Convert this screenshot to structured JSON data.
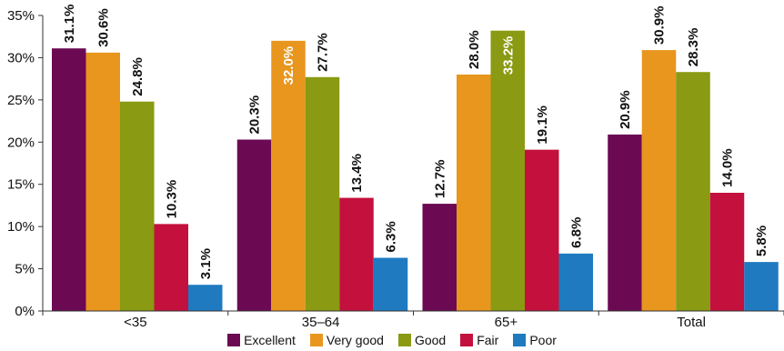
{
  "chart_data": {
    "type": "bar",
    "categories": [
      "<35",
      "35–64",
      "65+",
      "Total"
    ],
    "series": [
      {
        "name": "Excellent",
        "color": "#6b0a52",
        "values": [
          31.1,
          20.3,
          12.7,
          20.9
        ],
        "labels": [
          "31.1%",
          "20.3%",
          "12.7%",
          "20.9%"
        ]
      },
      {
        "name": "Very good",
        "color": "#e8961e",
        "values": [
          30.6,
          32.0,
          28.0,
          30.9
        ],
        "labels": [
          "30.6%",
          "32.0%",
          "28.0%",
          "30.9%"
        ]
      },
      {
        "name": "Good",
        "color": "#8a9a12",
        "values": [
          24.8,
          27.7,
          33.2,
          28.3
        ],
        "labels": [
          "24.8%",
          "27.7%",
          "33.2%",
          "28.3%"
        ]
      },
      {
        "name": "Fair",
        "color": "#c4103c",
        "values": [
          10.3,
          13.4,
          19.1,
          14.0
        ],
        "labels": [
          "10.3%",
          "13.4%",
          "19.1%",
          "14.0%"
        ]
      },
      {
        "name": "Poor",
        "color": "#1f7ac0",
        "values": [
          3.1,
          6.3,
          6.8,
          5.8
        ],
        "labels": [
          "3.1%",
          "6.3%",
          "6.8%",
          "5.8%"
        ]
      }
    ],
    "yticks": [
      "0%",
      "5%",
      "10%",
      "15%",
      "20%",
      "25%",
      "30%",
      "35%"
    ],
    "ylim": [
      0,
      35
    ],
    "grid": false,
    "legend_position": "bottom"
  }
}
